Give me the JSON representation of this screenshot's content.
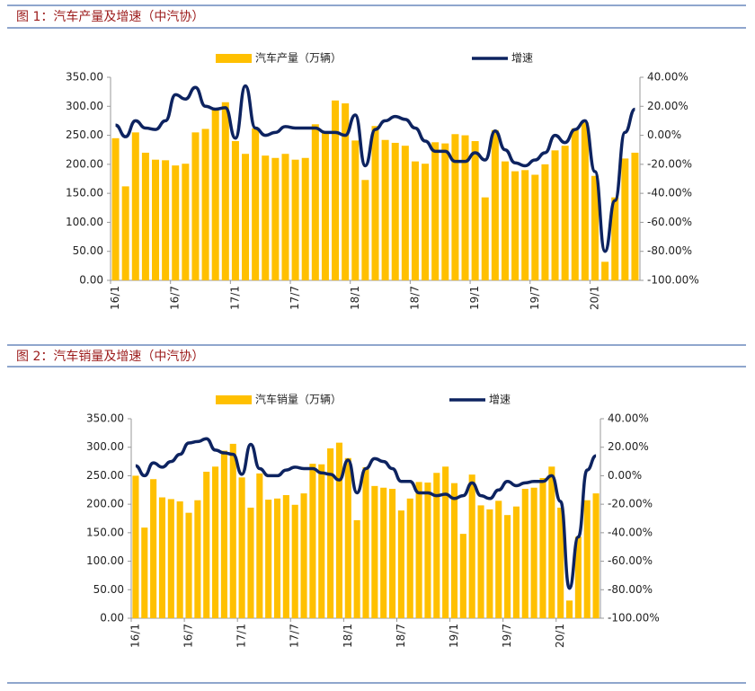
{
  "chart_data": [
    {
      "type": "bar",
      "title": "图 1：汽车产量及增速（中汽协）",
      "categories": [
        "16/1",
        null,
        null,
        null,
        null,
        null,
        "16/7",
        null,
        null,
        null,
        null,
        null,
        "17/1",
        null,
        null,
        null,
        null,
        null,
        "17/7",
        null,
        null,
        null,
        null,
        null,
        "18/1",
        null,
        null,
        null,
        null,
        null,
        "18/7",
        null,
        null,
        null,
        null,
        null,
        "19/1",
        null,
        null,
        null,
        null,
        null,
        "19/7",
        null,
        null,
        null,
        null,
        null,
        "20/1",
        null,
        null,
        null,
        null
      ],
      "series": [
        {
          "name": "汽车产量（万辆）",
          "type": "bar",
          "color": "#ffc000",
          "values": [
            245,
            162,
            255,
            220,
            208,
            207,
            198,
            201,
            255,
            261,
            296,
            307,
            240,
            218,
            262,
            215,
            211,
            218,
            208,
            211,
            269,
            256,
            310,
            305,
            241,
            173,
            266,
            242,
            237,
            232,
            205,
            201,
            238,
            236,
            252,
            250,
            240,
            143,
            259,
            205,
            188,
            190,
            182,
            200,
            224,
            232,
            262,
            272,
            180,
            32,
            143,
            210,
            220
          ]
        },
        {
          "name": "增速",
          "type": "line",
          "axis": "y2",
          "color": "#0d2360",
          "values": [
            7,
            -1,
            10,
            5,
            4,
            10,
            28,
            25,
            33,
            20,
            18,
            19,
            -2,
            34,
            5,
            0,
            2,
            6,
            5,
            5,
            5,
            2,
            2,
            0,
            14,
            -21,
            4,
            10,
            13,
            11,
            5,
            -4,
            -11,
            -11,
            -18,
            -18,
            -12,
            -17,
            3,
            -10,
            -19,
            -21,
            -17,
            -12,
            0,
            -5,
            4,
            10,
            -25,
            -80,
            -45,
            2,
            18
          ]
        }
      ],
      "ylim": [
        0,
        350
      ],
      "yticks": [
        {
          "value": 0,
          "label": "0.00"
        },
        {
          "value": 50,
          "label": "50.00"
        },
        {
          "value": 100,
          "label": "100.00"
        },
        {
          "value": 150,
          "label": "150.00"
        },
        {
          "value": 200,
          "label": "200.00"
        },
        {
          "value": 250,
          "label": "250.00"
        },
        {
          "value": 300,
          "label": "300.00"
        },
        {
          "value": 350,
          "label": "350.00"
        }
      ],
      "y2lim": [
        -100,
        40
      ],
      "y2ticks": [
        {
          "value": -100,
          "label": "-100.00%"
        },
        {
          "value": -80,
          "label": "-80.00%"
        },
        {
          "value": -60,
          "label": "-60.00%"
        },
        {
          "value": -40,
          "label": "-40.00%"
        },
        {
          "value": -20,
          "label": "-20.00%"
        },
        {
          "value": 0,
          "label": "0.00%"
        },
        {
          "value": 20,
          "label": "20.00%"
        },
        {
          "value": 40,
          "label": "40.00%"
        }
      ]
    },
    {
      "type": "bar",
      "title": "图 2：汽车销量及增速（中汽协）",
      "categories": [
        "16/1",
        null,
        null,
        null,
        null,
        null,
        "16/7",
        null,
        null,
        null,
        null,
        null,
        "17/1",
        null,
        null,
        null,
        null,
        null,
        "17/7",
        null,
        null,
        null,
        null,
        null,
        "18/1",
        null,
        null,
        null,
        null,
        null,
        "18/7",
        null,
        null,
        null,
        null,
        null,
        "19/1",
        null,
        null,
        null,
        null,
        null,
        "19/7",
        null,
        null,
        null,
        null,
        null,
        "20/1",
        null,
        null,
        null,
        null
      ],
      "series": [
        {
          "name": "汽车销量（万辆）",
          "type": "bar",
          "color": "#ffc000",
          "values": [
            250,
            159,
            244,
            212,
            209,
            205,
            185,
            207,
            257,
            266,
            294,
            306,
            247,
            194,
            254,
            208,
            210,
            216,
            199,
            219,
            271,
            270,
            298,
            308,
            281,
            172,
            265,
            232,
            229,
            227,
            189,
            210,
            239,
            238,
            255,
            266,
            237,
            148,
            252,
            198,
            191,
            206,
            181,
            196,
            227,
            229,
            246,
            266,
            194,
            31,
            143,
            207,
            219
          ]
        },
        {
          "name": "增速",
          "type": "line",
          "axis": "y2",
          "color": "#0d2360",
          "values": [
            7,
            0,
            9,
            6,
            10,
            15,
            23,
            24,
            26,
            18,
            16,
            15,
            1,
            22,
            5,
            0,
            0,
            4,
            6,
            5,
            5,
            2,
            1,
            -3,
            11,
            -12,
            5,
            12,
            10,
            5,
            -4,
            -4,
            -12,
            -12,
            -14,
            -13,
            -16,
            -14,
            -5,
            -14,
            -16,
            -10,
            -4,
            -7,
            -5,
            -4,
            -4,
            0,
            -18,
            -79,
            -43,
            4,
            14
          ]
        }
      ],
      "ylim": [
        0,
        350
      ],
      "yticks": [
        {
          "value": 0,
          "label": "0.00"
        },
        {
          "value": 50,
          "label": "50.00"
        },
        {
          "value": 100,
          "label": "100.00"
        },
        {
          "value": 150,
          "label": "150.00"
        },
        {
          "value": 200,
          "label": "200.00"
        },
        {
          "value": 250,
          "label": "250.00"
        },
        {
          "value": 300,
          "label": "300.00"
        },
        {
          "value": 350,
          "label": "350.00"
        }
      ],
      "y2lim": [
        -100,
        40
      ],
      "y2ticks": [
        {
          "value": -100,
          "label": "-100.00%"
        },
        {
          "value": -80,
          "label": "-80.00%"
        },
        {
          "value": -60,
          "label": "-60.00%"
        },
        {
          "value": -40,
          "label": "-40.00%"
        },
        {
          "value": -20,
          "label": "-20.00%"
        },
        {
          "value": 0,
          "label": "0.00%"
        },
        {
          "value": 20,
          "label": "20.00%"
        },
        {
          "value": 40,
          "label": "40.00%"
        }
      ]
    }
  ]
}
